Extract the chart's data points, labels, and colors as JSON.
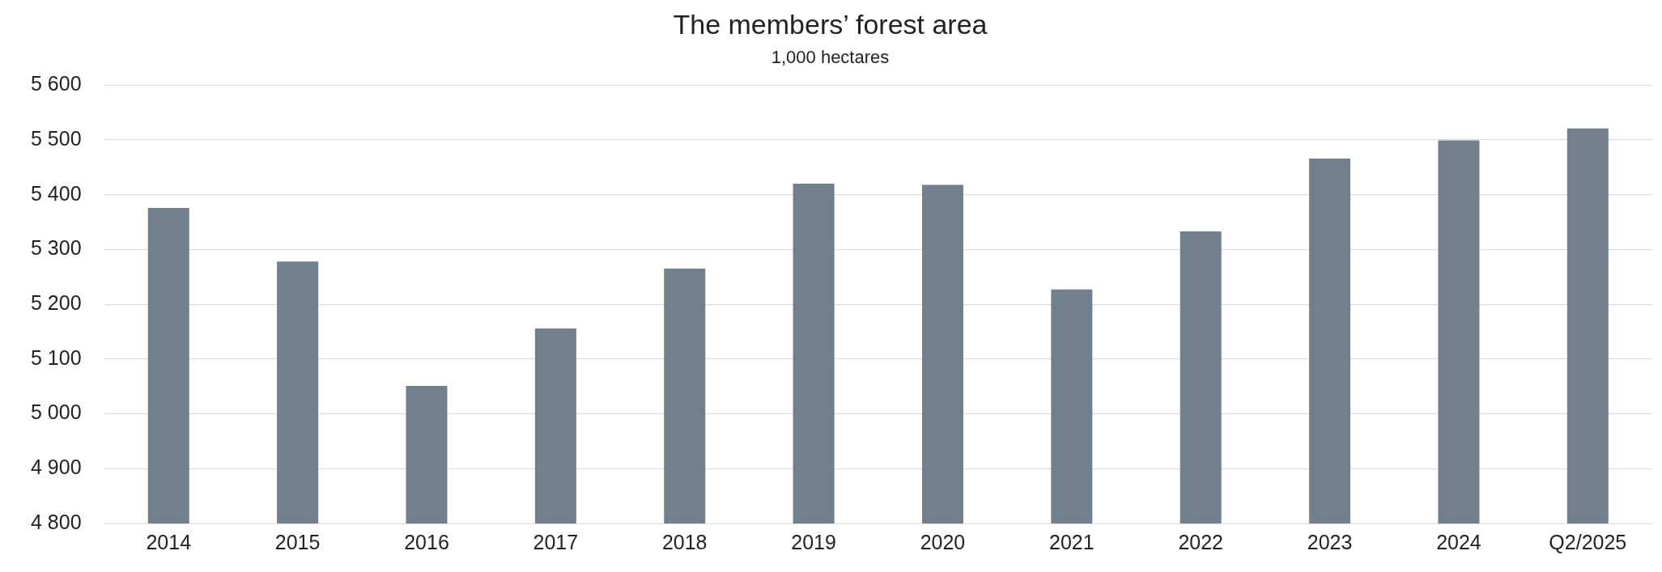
{
  "chart_data": {
    "type": "bar",
    "title": "The members’ forest area",
    "subtitle": "1,000 hectares",
    "categories": [
      "2014",
      "2015",
      "2016",
      "2017",
      "2018",
      "2019",
      "2020",
      "2021",
      "2022",
      "2023",
      "2024",
      "Q2/2025"
    ],
    "values": [
      5376,
      5278,
      5051,
      5156,
      5265,
      5420,
      5418,
      5227,
      5333,
      5466,
      5499,
      5521
    ],
    "color": "#72808d",
    "ylim": [
      4800,
      5600
    ],
    "yticks": [
      {
        "value": 4800,
        "label": "4 800"
      },
      {
        "value": 4900,
        "label": "4 900"
      },
      {
        "value": 5000,
        "label": "5 000"
      },
      {
        "value": 5100,
        "label": "5 100"
      },
      {
        "value": 5200,
        "label": "5 200"
      },
      {
        "value": 5300,
        "label": "5 300"
      },
      {
        "value": 5400,
        "label": "5 400"
      },
      {
        "value": 5500,
        "label": "5 500"
      },
      {
        "value": 5600,
        "label": "5 600"
      }
    ],
    "grid": "y",
    "legend": false
  }
}
